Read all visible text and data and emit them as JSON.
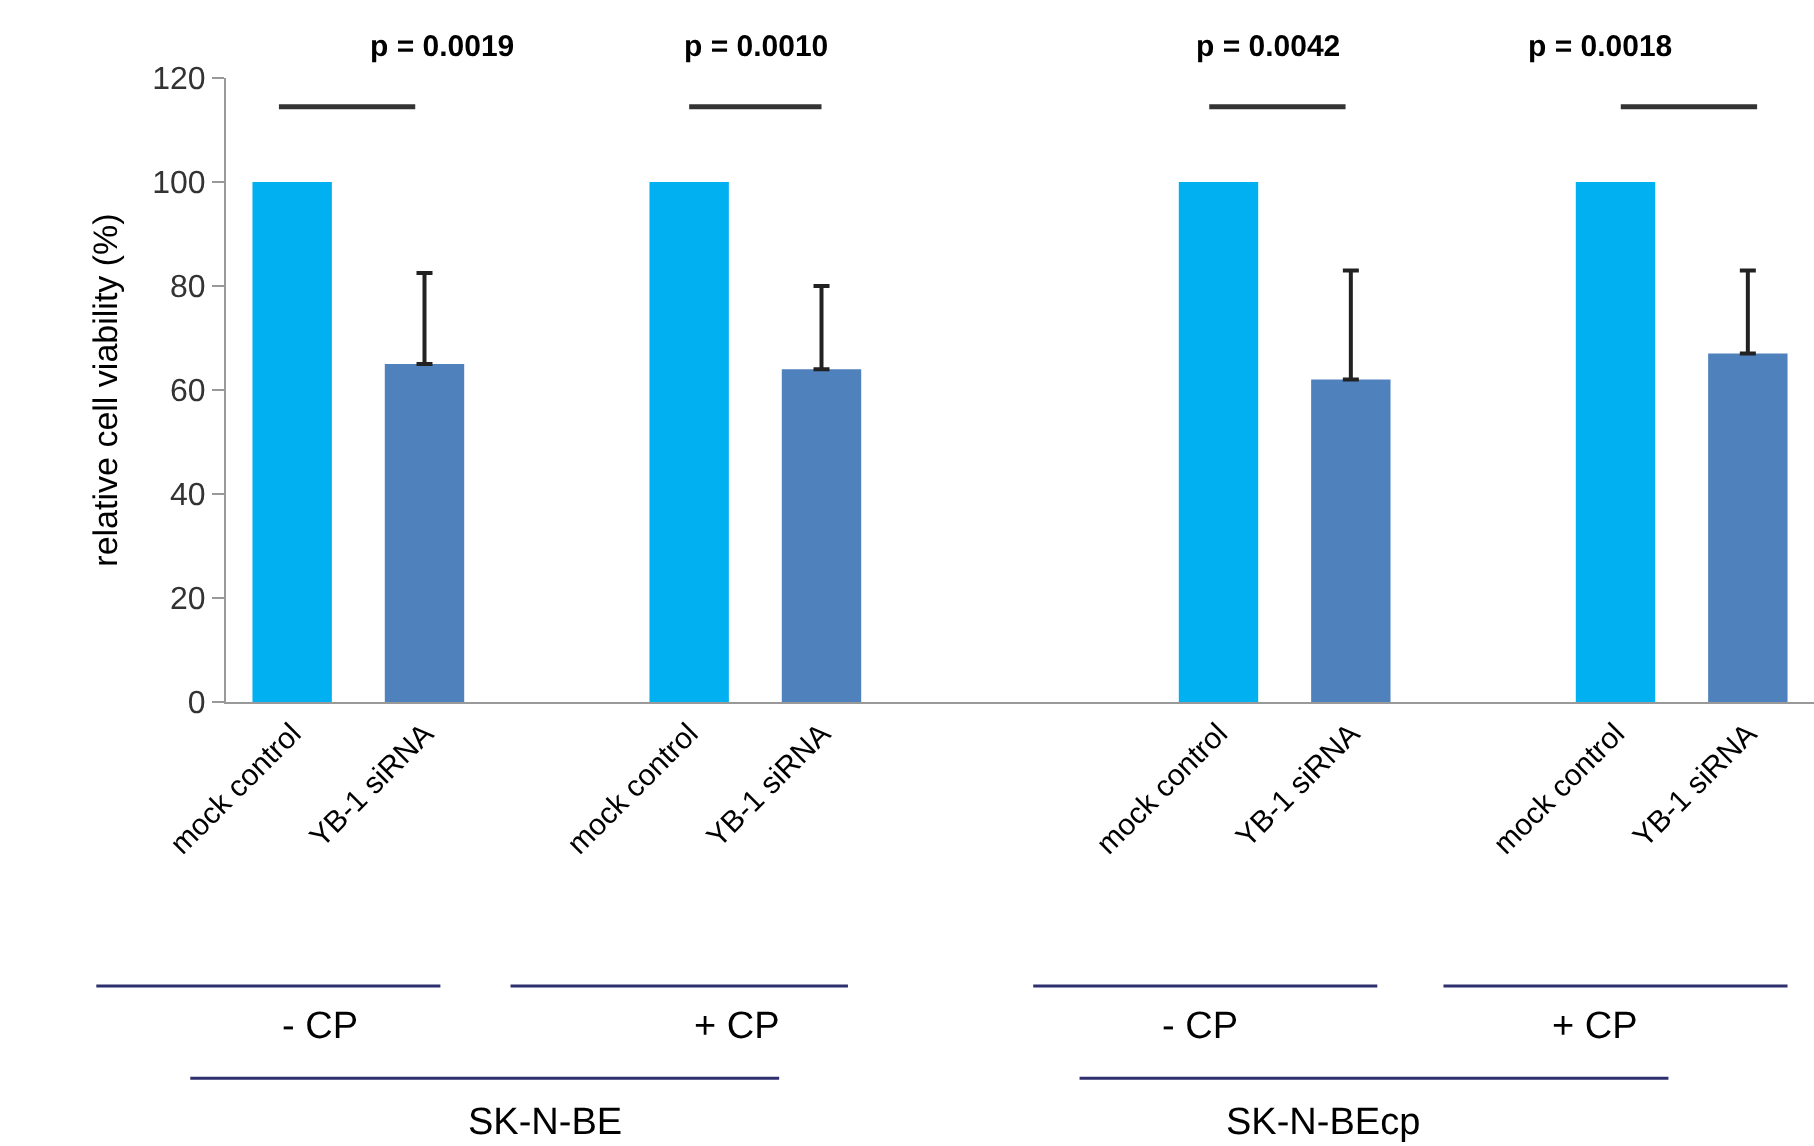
{
  "chart_data": {
    "type": "bar",
    "ylabel": "relative cell viability (%)",
    "categories": [
      "mock control",
      "YB-1 siRNA",
      null,
      "mock control",
      "YB-1 siRNA",
      null,
      null,
      "mock control",
      "YB-1 siRNA",
      null,
      "mock control",
      "YB-1 siRNA"
    ],
    "values": [
      100,
      65,
      null,
      100,
      64,
      null,
      null,
      100,
      62,
      null,
      100,
      67
    ],
    "colors": [
      "#00b0f0",
      "#4f81bd",
      null,
      "#00b0f0",
      "#4f81bd",
      null,
      null,
      "#00b0f0",
      "#4f81bd",
      null,
      "#00b0f0",
      "#4f81bd"
    ],
    "errors": [
      null,
      [
        65,
        82.5
      ],
      null,
      null,
      [
        64,
        80
      ],
      null,
      null,
      null,
      [
        62,
        83
      ],
      null,
      null,
      [
        67,
        83
      ]
    ],
    "ylim": [
      0,
      120
    ],
    "yticks": [
      0,
      20,
      40,
      60,
      80,
      100,
      120
    ],
    "annotations": [
      "p = 0.0019",
      "p = 0.0010",
      "p = 0.0042",
      "p = 0.0018",
      "- CP",
      "+ CP",
      "- CP",
      "+ CP",
      "SK-N-BE",
      "SK-N-BEcp"
    ]
  }
}
